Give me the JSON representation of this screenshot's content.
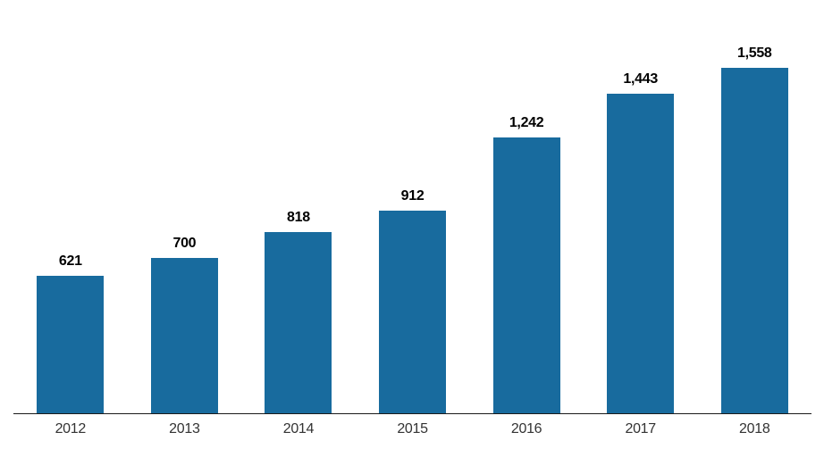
{
  "chart_data": {
    "type": "bar",
    "categories": [
      "2012",
      "2013",
      "2014",
      "2015",
      "2016",
      "2017",
      "2018"
    ],
    "values": [
      621,
      700,
      818,
      912,
      1242,
      1443,
      1558
    ],
    "value_labels": [
      "621",
      "700",
      "818",
      "912",
      "1,242",
      "1,443",
      "1,558"
    ],
    "title": "",
    "xlabel": "",
    "ylabel": "",
    "ylim": [
      0,
      1600
    ],
    "bar_color": "#186B9E",
    "axis_line_color": "#1a1a1a",
    "value_label_color": "#000000",
    "tick_label_color": "#333333",
    "background_color": "#ffffff",
    "grid": false,
    "legend": false,
    "data_labels_position": "above-bars"
  }
}
